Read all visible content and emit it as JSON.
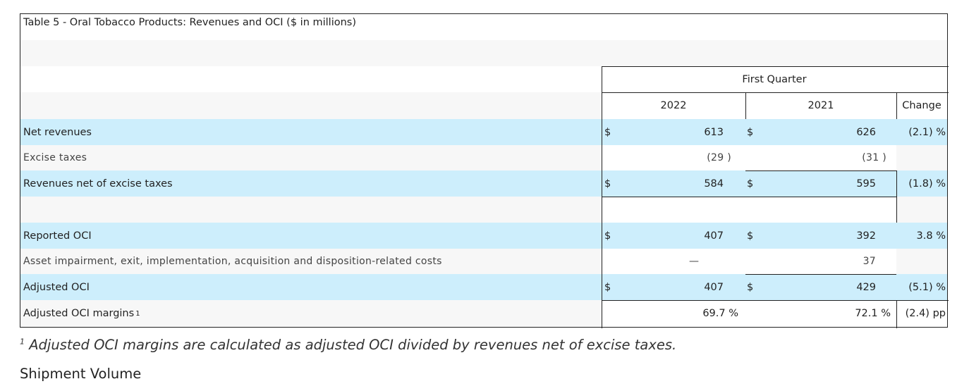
{
  "table": {
    "title": "Table 5 - Oral Tobacco Products: Revenues and OCI ($ in millions)",
    "period_header": "First Quarter",
    "col_2022": "2022",
    "col_2021": "2021",
    "col_change": "Change",
    "rows": [
      {
        "label": "Net revenues",
        "d1": "$",
        "v1": "613",
        "d2": "$",
        "v2": "626",
        "chg": "(2.1) %"
      },
      {
        "label": "Excise taxes",
        "v1": "(29 )",
        "v2": "(31 )"
      },
      {
        "label": "Revenues net of excise taxes",
        "d1": "$",
        "v1": "584",
        "d2": "$",
        "v2": "595",
        "chg": "(1.8) %"
      },
      {
        "label": "Reported OCI",
        "d1": "$",
        "v1": "407",
        "d2": "$",
        "v2": "392",
        "chg": "3.8 %"
      },
      {
        "label": "Asset impairment, exit, implementation, acquisition and disposition-related costs",
        "v1": "—",
        "v2": "37"
      },
      {
        "label": "Adjusted OCI",
        "d1": "$",
        "v1": "407",
        "d2": "$",
        "v2": "429",
        "chg": "(5.1) %"
      },
      {
        "label": "Adjusted OCI margins",
        "sup": "1",
        "v1": "69.7 %",
        "v2": "72.1 %",
        "chg": "(2.4) pp"
      }
    ]
  },
  "footnote": {
    "marker": "1",
    "text": "Adjusted OCI margins are calculated as adjusted OCI divided by revenues net of excise taxes."
  },
  "next_heading": "Shipment Volume"
}
